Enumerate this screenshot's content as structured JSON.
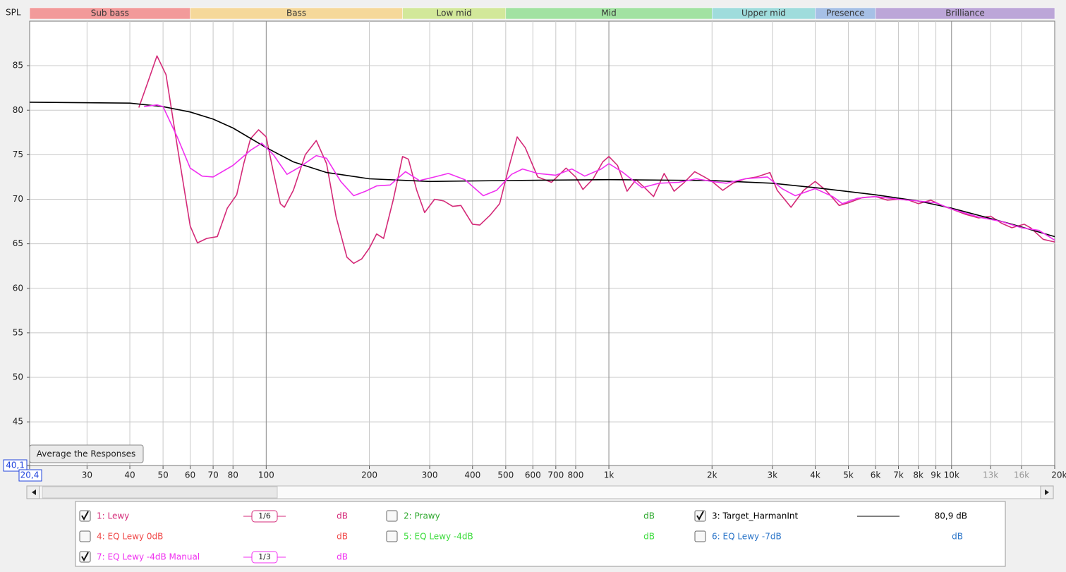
{
  "chart_data": {
    "type": "line",
    "y_label": "SPL",
    "xlim": [
      20.4,
      20000
    ],
    "ylim": [
      40.1,
      90
    ],
    "xlog": true,
    "grid": true,
    "xticks": [
      {
        "value": 20.4,
        "label": "20,4"
      },
      30,
      40,
      50,
      60,
      70,
      80,
      100,
      200,
      300,
      400,
      500,
      600,
      700,
      800,
      {
        "value": 1000,
        "label": "1k"
      },
      {
        "value": 2000,
        "label": "2k"
      },
      {
        "value": 3000,
        "label": "3k"
      },
      {
        "value": 4000,
        "label": "4k"
      },
      {
        "value": 5000,
        "label": "5k"
      },
      {
        "value": 6000,
        "label": "6k"
      },
      {
        "value": 7000,
        "label": "7k"
      },
      {
        "value": 8000,
        "label": "8k"
      },
      {
        "value": 9000,
        "label": "9k"
      },
      {
        "value": 10000,
        "label": "10k"
      },
      {
        "value": 13000,
        "label": "13k",
        "muted": true
      },
      {
        "value": 16000,
        "label": "16k",
        "muted": true
      },
      {
        "value": 20000,
        "label": "20kHz"
      }
    ],
    "yticks": [
      {
        "value": 40.1,
        "label": "40,1"
      },
      45,
      50,
      55,
      60,
      65,
      70,
      75,
      80,
      85
    ],
    "bands": [
      {
        "name": "Sub bass",
        "from": 20.4,
        "to": 60,
        "color": "#f29a9a"
      },
      {
        "name": "Bass",
        "from": 60,
        "to": 250,
        "color": "#f5d89a"
      },
      {
        "name": "Low mid",
        "from": 250,
        "to": 500,
        "color": "#d2e89a"
      },
      {
        "name": "Mid",
        "from": 500,
        "to": 2000,
        "color": "#a2e2a2"
      },
      {
        "name": "Upper mid",
        "from": 2000,
        "to": 4000,
        "color": "#9fdcdc"
      },
      {
        "name": "Presence",
        "from": 4000,
        "to": 6000,
        "color": "#a6c0e6"
      },
      {
        "name": "Brilliance",
        "from": 6000,
        "to": 20000,
        "color": "#bca6d8"
      }
    ],
    "series": [
      {
        "name": "1: Lewy",
        "color": "#d42a78",
        "checked": true,
        "smoothing": "1/6",
        "unit": "dB",
        "x": [
          42.5,
          45,
          48,
          51,
          55,
          60,
          63,
          67,
          72,
          77,
          82,
          86,
          90,
          95,
          100,
          105,
          110,
          113,
          120,
          130,
          140,
          150,
          160,
          172,
          180,
          190,
          200,
          210,
          220,
          235,
          250,
          260,
          275,
          290,
          310,
          330,
          350,
          370,
          400,
          420,
          450,
          480,
          510,
          540,
          570,
          620,
          680,
          750,
          800,
          840,
          900,
          960,
          1000,
          1060,
          1130,
          1200,
          1280,
          1350,
          1450,
          1550,
          1650,
          1780,
          1900,
          2000,
          2150,
          2300,
          2500,
          2700,
          2950,
          3100,
          3400,
          3700,
          4000,
          4300,
          4700,
          5000,
          5500,
          6000,
          6500,
          7000,
          7500,
          8000,
          8700,
          9500,
          10000,
          11000,
          12000,
          13000,
          14000,
          15000,
          16300,
          17000,
          18500,
          20000
        ],
        "values": [
          80.3,
          83,
          86.1,
          84,
          76,
          67,
          65.1,
          65.6,
          65.8,
          69,
          70.5,
          74,
          76.8,
          77.8,
          77,
          73,
          69.5,
          69.1,
          71,
          75,
          76.6,
          74,
          68,
          63.5,
          62.8,
          63.3,
          64.5,
          66.1,
          65.6,
          70,
          74.8,
          74.5,
          71,
          68.5,
          70,
          69.8,
          69.2,
          69.3,
          67.2,
          67.1,
          68.2,
          69.5,
          73.5,
          77,
          75.8,
          72.5,
          71.9,
          73.5,
          72.5,
          71.1,
          72.3,
          74.2,
          74.8,
          73.8,
          70.9,
          72.2,
          71.2,
          70.3,
          72.9,
          70.9,
          71.8,
          73.1,
          72.5,
          72,
          71,
          71.8,
          72.3,
          72.5,
          73,
          71,
          69.1,
          71,
          72,
          71,
          69.3,
          69.6,
          70.2,
          70.3,
          69.9,
          70,
          69.9,
          69.5,
          69.9,
          69.2,
          68.9,
          68.3,
          67.9,
          68.1,
          67.3,
          66.8,
          67.2,
          66.8,
          65.5,
          65.2
        ]
      },
      {
        "name": "2: Prawy",
        "color": "#2ea82e",
        "checked": false,
        "unit": "dB"
      },
      {
        "name": "3: Target_HarmanInt",
        "color": "#000000",
        "checked": true,
        "level": "80,9 dB",
        "x": [
          20.4,
          40,
          50,
          60,
          70,
          80,
          100,
          120,
          150,
          200,
          300,
          500,
          1000,
          2000,
          3000,
          4000,
          6000,
          8000,
          10000,
          15000,
          20000
        ],
        "values": [
          80.9,
          80.8,
          80.4,
          79.8,
          79,
          78,
          75.8,
          74.2,
          73,
          72.3,
          72,
          72.1,
          72.2,
          72.1,
          71.8,
          71.3,
          70.5,
          69.8,
          69,
          67.2,
          65.8
        ]
      },
      {
        "name": "4: EQ Lewy 0dB",
        "color": "#f04848",
        "checked": false,
        "unit": "dB"
      },
      {
        "name": "5: EQ Lewy -4dB",
        "color": "#3cdc3c",
        "checked": false,
        "unit": "dB"
      },
      {
        "name": "6: EQ Lewy -7dB",
        "color": "#2a74c8",
        "checked": false,
        "unit": "dB"
      },
      {
        "name": "7: EQ Lewy -4dB Manual",
        "color": "#f030f0",
        "checked": true,
        "smoothing": "1/3",
        "unit": "dB",
        "x": [
          44,
          48,
          50,
          55,
          60,
          65,
          70,
          80,
          90,
          97,
          105,
          115,
          125,
          140,
          150,
          165,
          180,
          195,
          210,
          230,
          255,
          280,
          310,
          340,
          380,
          430,
          470,
          520,
          560,
          620,
          700,
          780,
          850,
          950,
          1000,
          1100,
          1250,
          1400,
          1600,
          1800,
          2000,
          2200,
          2500,
          2900,
          3200,
          3500,
          4000,
          4500,
          4800,
          5300,
          6000,
          7000,
          8000,
          9000,
          10000,
          12000,
          14000,
          16000,
          18000,
          20000
        ],
        "values": [
          80.4,
          80.6,
          80.4,
          77,
          73.5,
          72.6,
          72.5,
          73.8,
          75.5,
          76.3,
          75,
          72.8,
          73.6,
          74.9,
          74.6,
          72,
          70.4,
          70.9,
          71.5,
          71.6,
          73.1,
          72.1,
          72.5,
          72.9,
          72.2,
          70.4,
          71,
          72.8,
          73.4,
          72.9,
          72.7,
          73.4,
          72.6,
          73.4,
          74,
          73,
          71.3,
          71.8,
          71.9,
          72.3,
          72,
          71.8,
          72.3,
          72.5,
          71.2,
          70.4,
          71.2,
          70.3,
          69.5,
          70.1,
          70.3,
          70,
          69.8,
          69.6,
          68.9,
          68,
          67.5,
          66.8,
          66.5,
          65.4
        ]
      }
    ]
  },
  "button": "Average the Responses"
}
